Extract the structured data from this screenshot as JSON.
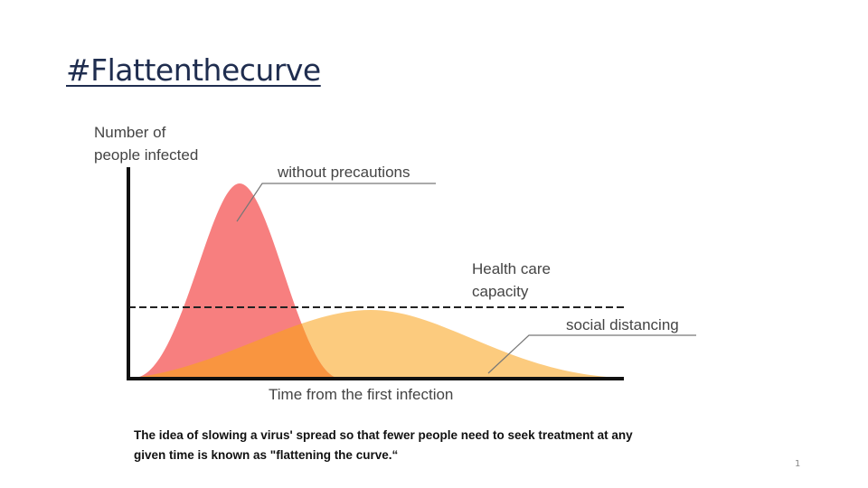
{
  "header": {
    "title": "#Flattenthecurve"
  },
  "diagram": {
    "y_axis_label": [
      "Number of",
      "people infected"
    ],
    "x_axis_label": "Time from the first infection",
    "peak_label": "without precautions",
    "capacity_label": [
      "Health care",
      "capacity"
    ],
    "flat_label": "social distancing"
  },
  "caption": [
    "The idea of slowing a virus' spread so that fewer people need to seek treatment at any",
    "given time is known as \"flattening the curve.“"
  ],
  "page_number": "1"
}
